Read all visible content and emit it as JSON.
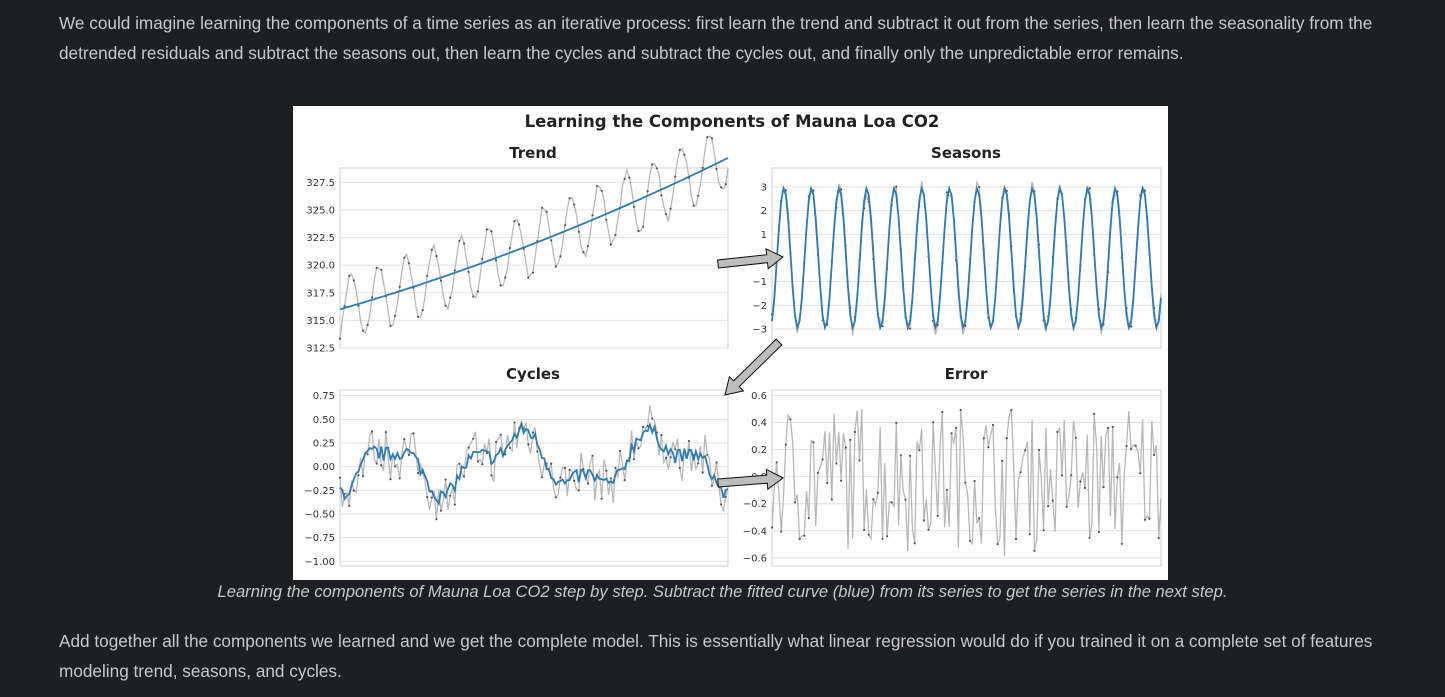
{
  "text": {
    "intro": "We could imagine learning the components of a time series as an iterative process: first learn the trend and subtract it out from the series, then learn the seasonality from the detrended residuals and subtract the seasons out, then learn the cycles and subtract the cycles out, and finally only the unpredictable error remains.",
    "caption": "Learning the components of Mauna Loa CO2 step by step. Subtract the fitted curve (blue) from its series to get the series in the next step.",
    "outro": "Add together all the components we learned and we get the complete model. This is essentially what linear regression would do if you trained it on a complete set of features modeling trend, seasons, and cycles."
  },
  "colors": {
    "page_background": "#1e1f22",
    "body_text": "#c6c8cc",
    "fitted_curve": "#2e7bb4",
    "series_line": "#b8b8b8",
    "arrow_fill": "#bdbdbd"
  },
  "chart_data": {
    "title": "Learning the Components of Mauna Loa CO2",
    "panels": [
      {
        "title": "Trend",
        "type": "line",
        "ylim": [
          312.5,
          328.8
        ],
        "yticks": [
          "312.5",
          "315.0",
          "317.5",
          "320.0",
          "322.5",
          "325.0",
          "327.5"
        ],
        "ytick_values": [
          312.5,
          315.0,
          317.5,
          320.0,
          322.5,
          325.0,
          327.5
        ],
        "gen": "trend"
      },
      {
        "title": "Seasons",
        "type": "line",
        "ylim": [
          -3.8,
          3.8
        ],
        "yticks": [
          "−3",
          "−2",
          "−1",
          "1",
          "2",
          "3"
        ],
        "ytick_values": [
          -3,
          -2,
          -1,
          1,
          2,
          3
        ],
        "gen": "seasons"
      },
      {
        "title": "Cycles",
        "type": "line",
        "ylim": [
          -1.05,
          0.81
        ],
        "yticks": [
          "−1.00",
          "−0.75",
          "−0.50",
          "−0.25",
          "0.00",
          "0.25",
          "0.50",
          "0.75"
        ],
        "ytick_values": [
          -1.0,
          -0.75,
          -0.5,
          -0.25,
          0.0,
          0.25,
          0.5,
          0.75
        ],
        "gen": "cycles"
      },
      {
        "title": "Error",
        "type": "line",
        "ylim": [
          -0.66,
          0.64
        ],
        "yticks": [
          "−0.6",
          "−0.4",
          "−0.2",
          "0.0",
          "0.2",
          "0.4",
          "0.6"
        ],
        "ytick_values": [
          -0.6,
          -0.4,
          -0.2,
          0.0,
          0.2,
          0.4,
          0.6
        ],
        "gen": "error"
      }
    ]
  }
}
